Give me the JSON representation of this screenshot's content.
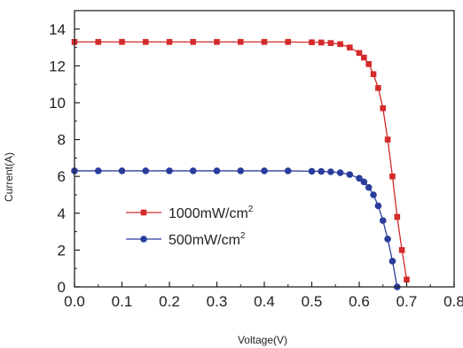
{
  "chart_data": {
    "type": "line",
    "xlabel": "Voltage(V)",
    "ylabel": "Current(A)",
    "xlim": [
      0.0,
      0.8
    ],
    "ylim": [
      0,
      15
    ],
    "x_ticks": [
      "0.0",
      "0.1",
      "0.2",
      "0.3",
      "0.4",
      "0.5",
      "0.6",
      "0.7",
      "0.8"
    ],
    "y_ticks": [
      "0",
      "2",
      "4",
      "6",
      "8",
      "10",
      "12",
      "14"
    ],
    "grid": false,
    "legend_position": "lower-left",
    "series": [
      {
        "name": "1000mW/cm",
        "name_superscript": "2",
        "color": "#d42a2a",
        "marker": "square",
        "x": [
          0.0,
          0.05,
          0.1,
          0.15,
          0.2,
          0.25,
          0.3,
          0.35,
          0.4,
          0.45,
          0.5,
          0.52,
          0.54,
          0.56,
          0.58,
          0.6,
          0.61,
          0.62,
          0.63,
          0.64,
          0.65,
          0.66,
          0.67,
          0.68,
          0.69,
          0.7
        ],
        "y": [
          13.3,
          13.3,
          13.3,
          13.3,
          13.3,
          13.3,
          13.3,
          13.3,
          13.3,
          13.3,
          13.28,
          13.27,
          13.24,
          13.18,
          13.0,
          12.7,
          12.45,
          12.1,
          11.55,
          10.8,
          9.7,
          8.0,
          6.0,
          3.8,
          2.0,
          0.4
        ]
      },
      {
        "name": "500mW/cm",
        "name_superscript": "2",
        "color": "#2a3c9c",
        "marker": "circle",
        "x": [
          0.0,
          0.05,
          0.1,
          0.15,
          0.2,
          0.25,
          0.3,
          0.35,
          0.4,
          0.45,
          0.5,
          0.52,
          0.54,
          0.56,
          0.58,
          0.6,
          0.61,
          0.62,
          0.63,
          0.64,
          0.65,
          0.66,
          0.67,
          0.68
        ],
        "y": [
          6.3,
          6.3,
          6.3,
          6.3,
          6.3,
          6.3,
          6.3,
          6.3,
          6.3,
          6.3,
          6.28,
          6.27,
          6.25,
          6.2,
          6.1,
          5.9,
          5.7,
          5.4,
          5.0,
          4.4,
          3.6,
          2.6,
          1.4,
          0.0
        ]
      }
    ]
  }
}
